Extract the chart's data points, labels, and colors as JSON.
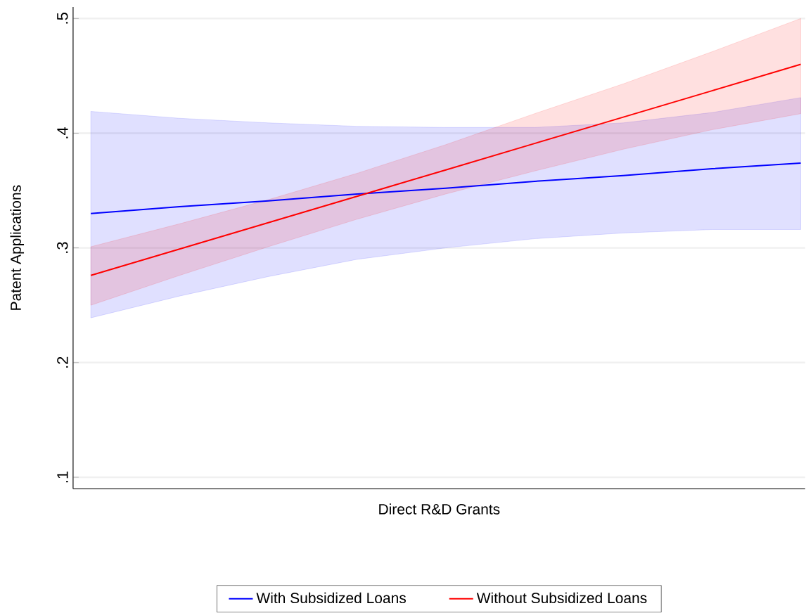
{
  "chart_data": {
    "type": "line",
    "xlabel": "Direct R&D Grants",
    "ylabel": "Patent Applications",
    "categories": [
      null,
      null,
      null,
      null,
      null,
      null,
      null,
      null,
      null
    ],
    "series": [
      {
        "name": "With Subsidized Loans",
        "color": "#0000ff",
        "values": [
          0.33,
          0.336,
          0.341,
          0.347,
          0.352,
          0.358,
          0.363,
          0.369,
          0.374
        ],
        "lower": [
          0.239,
          0.258,
          0.275,
          0.29,
          0.3,
          0.308,
          0.313,
          0.316,
          0.316
        ],
        "upper": [
          0.419,
          0.413,
          0.409,
          0.406,
          0.405,
          0.405,
          0.409,
          0.418,
          0.431
        ]
      },
      {
        "name": "Without Subsidized Loans",
        "color": "#ff0000",
        "values": [
          0.276,
          0.299,
          0.322,
          0.345,
          0.368,
          0.391,
          0.414,
          0.437,
          0.46
        ],
        "lower": [
          0.25,
          0.276,
          0.301,
          0.325,
          0.347,
          0.367,
          0.386,
          0.403,
          0.417
        ],
        "upper": [
          0.301,
          0.321,
          0.342,
          0.365,
          0.39,
          0.417,
          0.443,
          0.471,
          0.5
        ]
      }
    ],
    "ylim": [
      0.09,
      0.51
    ],
    "yticks": [
      {
        "value": 0.1,
        "label": ".1"
      },
      {
        "value": 0.2,
        "label": ".2"
      },
      {
        "value": 0.3,
        "label": ".3"
      },
      {
        "value": 0.4,
        "label": ".4"
      },
      {
        "value": 0.5,
        "label": ".5"
      }
    ],
    "grid": "y",
    "legend": "bottom",
    "line_style": "solid",
    "marker": "none"
  }
}
